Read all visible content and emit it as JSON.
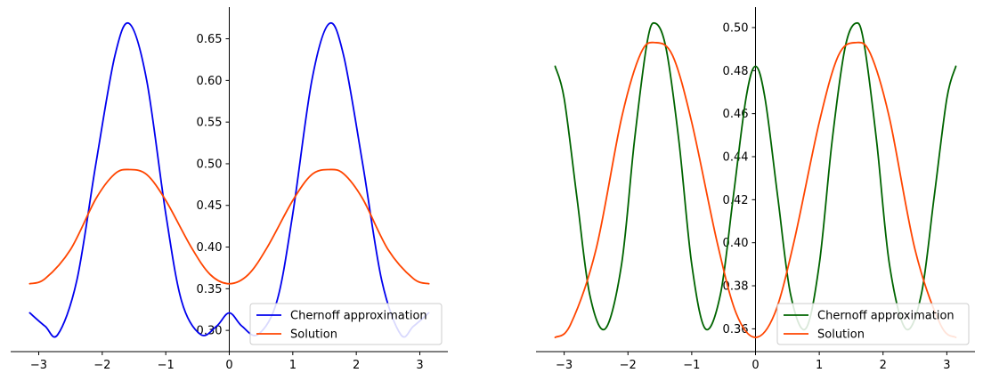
{
  "chart_data": [
    {
      "type": "line",
      "xlim": [
        -3.4416,
        3.4416
      ],
      "ylim": [
        0.2745,
        0.688
      ],
      "x_ticks": [
        -3,
        -2,
        -1,
        0,
        1,
        2,
        3
      ],
      "x_tick_labels": [
        "−3",
        "−2",
        "−1",
        "0",
        "1",
        "2",
        "3"
      ],
      "y_ticks": [
        0.3,
        0.35,
        0.4,
        0.45,
        0.5,
        0.55,
        0.6,
        0.65
      ],
      "y_tick_labels": [
        "0.30",
        "0.35",
        "0.40",
        "0.45",
        "0.50",
        "0.55",
        "0.60",
        "0.65"
      ],
      "grid": false,
      "spines": "centered",
      "legend": "lower-right",
      "series": [
        {
          "name": "Chernoff approximation",
          "color": "#0000ee",
          "x": [
            -3.1416,
            -2.9,
            -2.7,
            -2.4,
            -2.1,
            -1.8,
            -1.5708,
            -1.3,
            -1.0,
            -0.75,
            -0.45,
            -0.2,
            0.0,
            0.2,
            0.45,
            0.75,
            1.0,
            1.3,
            1.5708,
            1.8,
            2.1,
            2.4,
            2.7,
            2.9,
            3.1416
          ],
          "y": [
            0.321,
            0.305,
            0.295,
            0.36,
            0.5,
            0.63,
            0.668,
            0.6,
            0.44,
            0.335,
            0.295,
            0.305,
            0.321,
            0.305,
            0.295,
            0.335,
            0.44,
            0.6,
            0.668,
            0.63,
            0.5,
            0.36,
            0.295,
            0.305,
            0.321
          ]
        },
        {
          "name": "Solution",
          "color": "#ff4500",
          "x": [
            -3.1416,
            -2.9,
            -2.5,
            -2.1,
            -1.8,
            -1.5708,
            -1.3,
            -1.0,
            -0.6,
            -0.3,
            0.0,
            0.3,
            0.6,
            1.0,
            1.3,
            1.5708,
            1.8,
            2.1,
            2.5,
            2.9,
            3.1416
          ],
          "y": [
            0.356,
            0.362,
            0.397,
            0.458,
            0.488,
            0.493,
            0.487,
            0.456,
            0.4,
            0.367,
            0.356,
            0.367,
            0.4,
            0.456,
            0.487,
            0.493,
            0.488,
            0.458,
            0.397,
            0.362,
            0.356
          ]
        }
      ]
    },
    {
      "type": "line",
      "xlim": [
        -3.4416,
        3.4416
      ],
      "ylim": [
        0.3494,
        0.5095
      ],
      "x_ticks": [
        -3,
        -2,
        -1,
        0,
        1,
        2,
        3
      ],
      "x_tick_labels": [
        "−3",
        "−2",
        "−1",
        "0",
        "1",
        "2",
        "3"
      ],
      "y_ticks": [
        0.36,
        0.38,
        0.4,
        0.42,
        0.44,
        0.46,
        0.48,
        0.5
      ],
      "y_tick_labels": [
        "0.36",
        "0.38",
        "0.40",
        "0.42",
        "0.44",
        "0.46",
        "0.48",
        "0.50"
      ],
      "grid": false,
      "spines": "centered",
      "legend": "lower-right",
      "series": [
        {
          "name": "Chernoff approximation",
          "color": "#006400",
          "x": [
            -3.1416,
            -3.0,
            -2.8,
            -2.6,
            -2.3562,
            -2.1,
            -1.9,
            -1.7,
            -1.5708,
            -1.4,
            -1.2,
            -1.0,
            -0.7854,
            -0.55,
            -0.35,
            -0.15,
            0.0,
            0.15,
            0.35,
            0.55,
            0.7854,
            1.0,
            1.2,
            1.4,
            1.5708,
            1.7,
            1.9,
            2.1,
            2.3562,
            2.6,
            2.8,
            3.0,
            3.1416
          ],
          "y": [
            0.482,
            0.467,
            0.421,
            0.376,
            0.36,
            0.39,
            0.447,
            0.493,
            0.502,
            0.49,
            0.447,
            0.39,
            0.36,
            0.376,
            0.421,
            0.467,
            0.482,
            0.467,
            0.421,
            0.376,
            0.36,
            0.39,
            0.447,
            0.49,
            0.502,
            0.493,
            0.447,
            0.39,
            0.36,
            0.376,
            0.421,
            0.467,
            0.482
          ]
        },
        {
          "name": "Solution",
          "color": "#ff4500",
          "x": [
            -3.1416,
            -2.9,
            -2.5,
            -2.1,
            -1.8,
            -1.5708,
            -1.3,
            -1.0,
            -0.6,
            -0.3,
            0.0,
            0.3,
            0.6,
            1.0,
            1.3,
            1.5708,
            1.8,
            2.1,
            2.5,
            2.9,
            3.1416
          ],
          "y": [
            0.356,
            0.362,
            0.397,
            0.458,
            0.488,
            0.493,
            0.487,
            0.456,
            0.4,
            0.367,
            0.356,
            0.367,
            0.4,
            0.456,
            0.487,
            0.493,
            0.488,
            0.458,
            0.397,
            0.362,
            0.356
          ]
        }
      ]
    }
  ]
}
